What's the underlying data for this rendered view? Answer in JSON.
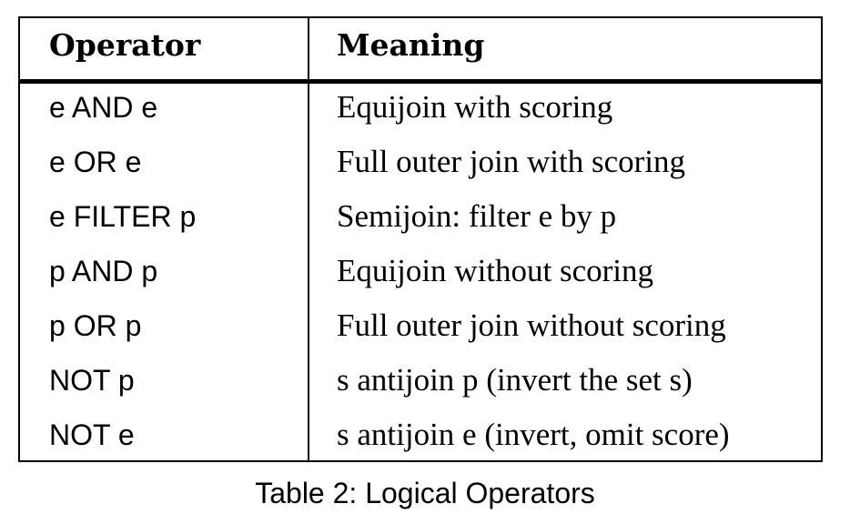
{
  "table": {
    "headers": {
      "operator": "Operator",
      "meaning": "Meaning"
    },
    "rows": [
      {
        "operator": "e AND e",
        "meaning": "Equijoin with scoring"
      },
      {
        "operator": "e OR e",
        "meaning": "Full outer join with scoring"
      },
      {
        "operator": "e FILTER p",
        "meaning": "Semijoin: filter e by p"
      },
      {
        "operator": "p AND p",
        "meaning": "Equijoin without scoring"
      },
      {
        "operator": "p OR p",
        "meaning": "Full outer join without scoring"
      },
      {
        "operator": "NOT p",
        "meaning": "s antijoin p (invert the set s)"
      },
      {
        "operator": "NOT e",
        "meaning": "s antijoin e (invert, omit score)"
      }
    ]
  },
  "caption": "Table 2: Logical Operators"
}
